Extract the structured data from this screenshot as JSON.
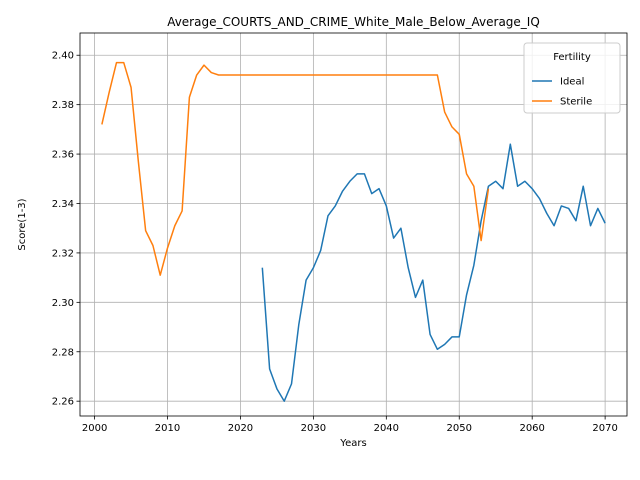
{
  "chart_data": {
    "type": "line",
    "title": "Average_COURTS_AND_CRIME_White_Male_Below_Average_IQ",
    "xlabel": "Years",
    "ylabel": "Score(1-3)",
    "xlim": [
      1998,
      2073
    ],
    "ylim": [
      2.254,
      2.409
    ],
    "xticks": [
      2000,
      2010,
      2020,
      2030,
      2040,
      2050,
      2060,
      2070
    ],
    "yticks": [
      2.26,
      2.28,
      2.3,
      2.32,
      2.34,
      2.36,
      2.38,
      2.4
    ],
    "ytick_labels": [
      "2.26",
      "2.28",
      "2.30",
      "2.32",
      "2.34",
      "2.36",
      "2.38",
      "2.40"
    ],
    "grid": true,
    "legend": {
      "title": "Fertility",
      "placement": "top-right"
    },
    "series": [
      {
        "name": "Ideal",
        "color": "#1f77b4",
        "x": [
          2023,
          2024,
          2025,
          2026,
          2027,
          2028,
          2029,
          2030,
          2031,
          2032,
          2033,
          2034,
          2035,
          2036,
          2037,
          2038,
          2039,
          2040,
          2041,
          2042,
          2043,
          2044,
          2045,
          2046,
          2047,
          2048,
          2049,
          2050,
          2051,
          2052,
          2053,
          2054,
          2055,
          2056,
          2057,
          2058,
          2059,
          2060,
          2061,
          2062,
          2063,
          2064,
          2065,
          2066,
          2067,
          2068,
          2069,
          2070
        ],
        "y": [
          2.314,
          2.273,
          2.265,
          2.26,
          2.267,
          2.291,
          2.309,
          2.314,
          2.321,
          2.335,
          2.339,
          2.345,
          2.349,
          2.352,
          2.352,
          2.344,
          2.346,
          2.339,
          2.326,
          2.33,
          2.314,
          2.302,
          2.309,
          2.287,
          2.281,
          2.283,
          2.286,
          2.286,
          2.303,
          2.315,
          2.333,
          2.347,
          2.349,
          2.346,
          2.364,
          2.347,
          2.349,
          2.346,
          2.342,
          2.336,
          2.331,
          2.339,
          2.338,
          2.333,
          2.347,
          2.331,
          2.338,
          2.332
        ]
      },
      {
        "name": "Sterile",
        "color": "#ff7f0e",
        "x": [
          2001,
          2002,
          2003,
          2004,
          2005,
          2006,
          2007,
          2008,
          2009,
          2010,
          2011,
          2012,
          2013,
          2014,
          2015,
          2016,
          2017,
          2018,
          2019,
          2020,
          2021,
          2022,
          2023,
          2024,
          2025,
          2026,
          2027,
          2028,
          2029,
          2030,
          2031,
          2032,
          2033,
          2034,
          2035,
          2036,
          2037,
          2038,
          2039,
          2040,
          2041,
          2042,
          2043,
          2044,
          2045,
          2046,
          2047,
          2048,
          2049,
          2050,
          2051,
          2052,
          2053,
          2054
        ],
        "y": [
          2.372,
          2.385,
          2.397,
          2.397,
          2.387,
          2.357,
          2.329,
          2.323,
          2.311,
          2.322,
          2.331,
          2.337,
          2.383,
          2.392,
          2.396,
          2.393,
          2.392,
          2.392,
          2.392,
          2.392,
          2.392,
          2.392,
          2.392,
          2.392,
          2.392,
          2.392,
          2.392,
          2.392,
          2.392,
          2.392,
          2.392,
          2.392,
          2.392,
          2.392,
          2.392,
          2.392,
          2.392,
          2.392,
          2.392,
          2.392,
          2.392,
          2.392,
          2.392,
          2.392,
          2.392,
          2.392,
          2.392,
          2.377,
          2.371,
          2.368,
          2.352,
          2.347,
          2.325,
          2.346
        ]
      }
    ]
  }
}
